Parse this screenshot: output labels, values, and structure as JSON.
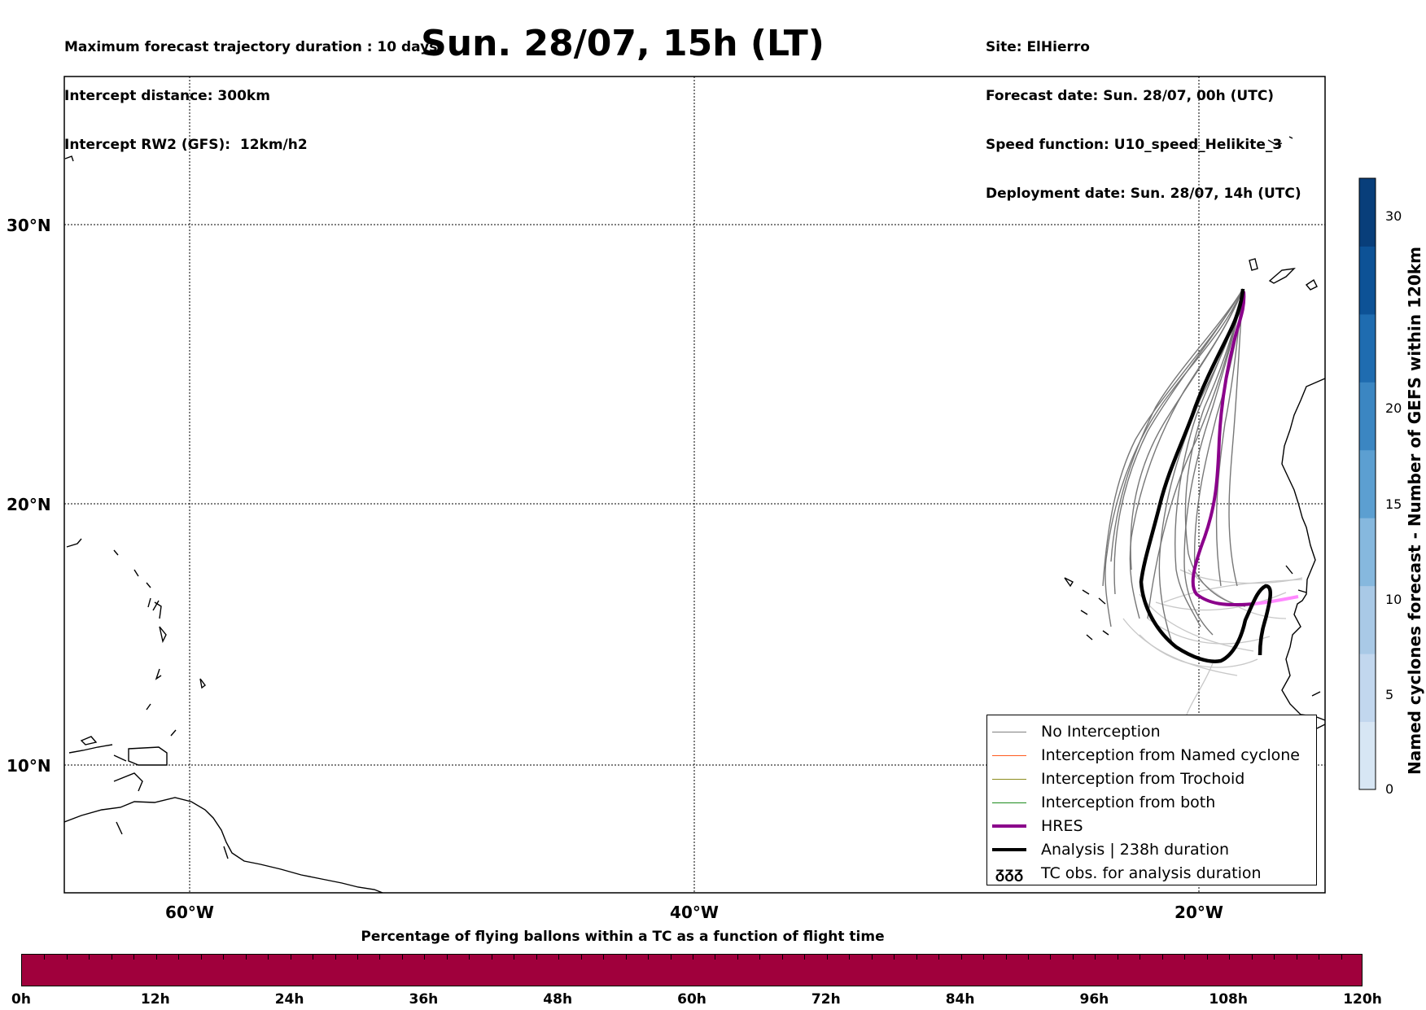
{
  "header": {
    "info_left": [
      "Maximum forecast trajectory duration : 10 days",
      "Intercept distance: 300km",
      "Intercept RW2 (GFS):  12km/h2"
    ],
    "title": "Sun. 28/07, 15h (LT)",
    "info_right": [
      "Site: ElHierro",
      "Forecast date: Sun. 28/07, 00h (UTC)",
      "Speed function: U10_speed_Helikite_3",
      "Deployment date: Sun. 28/07, 14h (UTC)"
    ]
  },
  "map": {
    "lat_labels": [
      "30°N",
      "20°N",
      "10°N"
    ],
    "lon_labels": [
      "60°W",
      "40°W",
      "20°W"
    ]
  },
  "legend": {
    "items": [
      {
        "label": "No Interception",
        "color": "#7f7f7f"
      },
      {
        "label": "Interception from Named cyclone",
        "color": "#ff5a1e"
      },
      {
        "label": "Interception from Trochoid",
        "color": "#8c8c1e"
      },
      {
        "label": "Interception from both",
        "color": "#1e8c1e"
      },
      {
        "label": "HRES",
        "color": "#8b008b"
      },
      {
        "label": "Analysis | 238h duration",
        "color": "#000000"
      },
      {
        "label": "TC obs. for analysis duration",
        "color": "#000000"
      }
    ],
    "tc_symbol": "ᵹᵹᵹ"
  },
  "colorbar_vertical": {
    "label": "Named cyclones forecast - Number of GEFS within 120km",
    "ticks": [
      "0",
      "5",
      "10",
      "15",
      "20",
      "30"
    ],
    "colors": [
      "#d7e6f4",
      "#c2d7ee",
      "#a9c9e6",
      "#86b8de",
      "#5c9fd1",
      "#3b86c2",
      "#1f6cb0",
      "#0d5296",
      "#083e7a"
    ]
  },
  "colorbar_horizontal": {
    "title": "Percentage of flying ballons within a TC as a function of flight time",
    "ticks": [
      "0h",
      "12h",
      "24h",
      "36h",
      "48h",
      "60h",
      "72h",
      "84h",
      "96h",
      "108h",
      "120h"
    ],
    "color": "#a0003c"
  }
}
